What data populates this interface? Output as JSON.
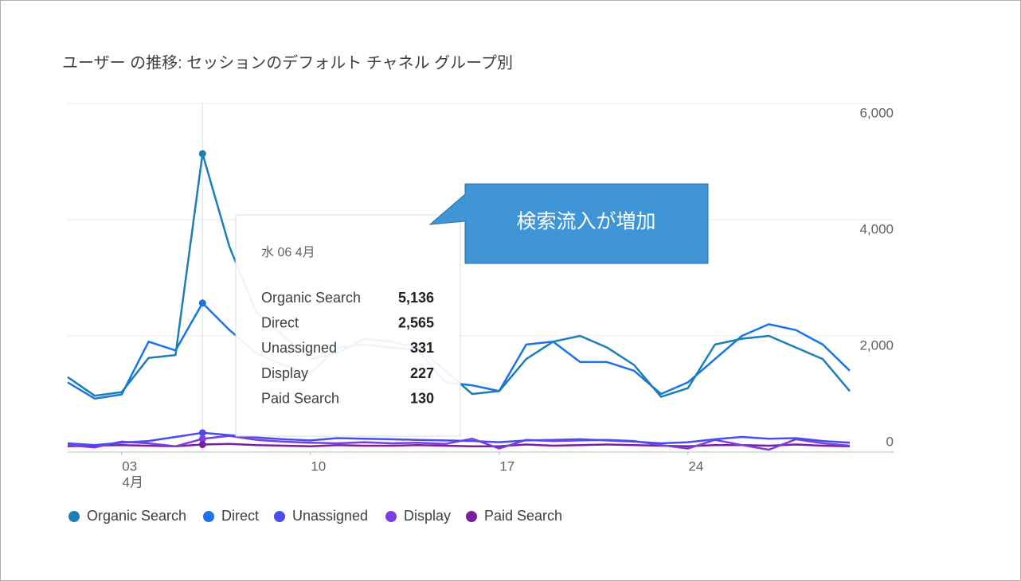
{
  "chart_data": {
    "type": "line",
    "title": "ユーザー の推移: セッションのデフォルト チャネル グループ別",
    "x": [
      1,
      2,
      3,
      4,
      5,
      6,
      7,
      8,
      9,
      10,
      11,
      12,
      13,
      14,
      15,
      16,
      17,
      18,
      19,
      20,
      21,
      22,
      23,
      24,
      25,
      26,
      27,
      28,
      29,
      30
    ],
    "xlim": [
      1,
      30
    ],
    "xticks": [
      {
        "value": 3,
        "label": "03"
      },
      10,
      17,
      24
    ],
    "x_month_label": "4月",
    "ylim": [
      0,
      6000
    ],
    "yticks": [
      0,
      {
        "value": 2000,
        "label": "2,000"
      },
      {
        "value": 4000,
        "label": "4,000"
      },
      {
        "value": 6000,
        "label": "6,000"
      }
    ],
    "grid": true,
    "legend": "bottom",
    "series": [
      {
        "name": "Organic Search",
        "color": "#1a7fb5",
        "values": [
          1290,
          970,
          1030,
          1620,
          1670,
          5136,
          3530,
          2400,
          2000,
          1600,
          1700,
          1950,
          1900,
          1800,
          1400,
          1000,
          1050,
          1600,
          1900,
          2000,
          1800,
          1500,
          950,
          1100,
          1850,
          1950,
          2000,
          1800,
          1600,
          1050
        ],
        "value_labels": [
          null,
          null,
          null,
          null,
          null,
          "5,136",
          null,
          null,
          null,
          null,
          null,
          null,
          null,
          null,
          null,
          null,
          null,
          null,
          null,
          null,
          null,
          null,
          null,
          null,
          null,
          null,
          null,
          null,
          null,
          null
        ]
      },
      {
        "name": "Direct",
        "color": "#1a73e8",
        "values": [
          1200,
          920,
          990,
          1900,
          1750,
          2565,
          2100,
          1700,
          1500,
          1350,
          1800,
          1850,
          1800,
          1750,
          1200,
          1150,
          1050,
          1850,
          1900,
          1550,
          1550,
          1400,
          1000,
          1200,
          1600,
          2000,
          2200,
          2100,
          1850,
          1400
        ],
        "value_labels": [
          null,
          null,
          null,
          null,
          null,
          "2,565",
          null,
          null,
          null,
          null,
          null,
          null,
          null,
          null,
          null,
          null,
          null,
          null,
          null,
          null,
          null,
          null,
          null,
          null,
          null,
          null,
          null,
          null,
          null,
          null
        ]
      },
      {
        "name": "Unassigned",
        "color": "#4b4cf0",
        "values": [
          150,
          120,
          160,
          190,
          260,
          331,
          290,
          250,
          220,
          200,
          240,
          230,
          220,
          210,
          200,
          190,
          170,
          200,
          210,
          220,
          200,
          180,
          150,
          170,
          220,
          260,
          230,
          240,
          190,
          160
        ]
      },
      {
        "name": "Display",
        "color": "#7b3fe0",
        "values": [
          120,
          80,
          180,
          150,
          100,
          227,
          280,
          210,
          180,
          160,
          150,
          170,
          150,
          160,
          140,
          230,
          60,
          210,
          190,
          200,
          210,
          190,
          120,
          60,
          210,
          120,
          40,
          220,
          150,
          110
        ]
      },
      {
        "name": "Paid Search",
        "color": "#7a1fa2",
        "values": [
          100,
          110,
          120,
          110,
          100,
          130,
          140,
          120,
          110,
          100,
          120,
          110,
          110,
          120,
          110,
          100,
          100,
          130,
          110,
          120,
          130,
          120,
          110,
          100,
          120,
          120,
          110,
          130,
          110,
          100
        ]
      }
    ],
    "tooltip_title": "水 06 4月",
    "tooltip_index": 5,
    "annotation": "検索流入が増加"
  }
}
